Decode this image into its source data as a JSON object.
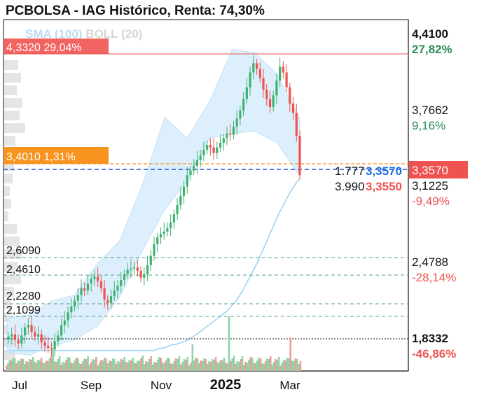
{
  "title": "PCBOLSA - IAG Histórico, Renta: 74,30%",
  "indicators": {
    "sma": "SMA (100)",
    "boll": "BOLL (20)"
  },
  "colors": {
    "up": "#3cb371",
    "down": "#ef5350",
    "sma": "#9dd4f5",
    "band": "#cfe8fb",
    "orange": "#f7931e",
    "blue": "#1f50e0"
  },
  "chart_data": {
    "type": "candlestick",
    "x_ticks": [
      "Jul",
      "Sep",
      "Nov",
      "2025",
      "Mar"
    ],
    "y_range": [
      1.68,
      4.55
    ],
    "price_series": {
      "name": "IAG",
      "close": [
        1.96,
        1.98,
        1.93,
        1.9,
        1.97,
        2.04,
        2.06,
        2.0,
        1.96,
        1.98,
        1.91,
        1.88,
        1.86,
        1.85,
        1.92,
        1.97,
        2.06,
        2.1,
        2.17,
        2.22,
        2.27,
        2.32,
        2.38,
        2.36,
        2.42,
        2.46,
        2.48,
        2.44,
        2.38,
        2.28,
        2.25,
        2.31,
        2.36,
        2.4,
        2.45,
        2.5,
        2.54,
        2.55,
        2.56,
        2.53,
        2.47,
        2.5,
        2.58,
        2.66,
        2.76,
        2.82,
        2.85,
        2.87,
        2.9,
        2.95,
        3.02,
        3.1,
        3.18,
        3.26,
        3.36,
        3.4,
        3.44,
        3.49,
        3.53,
        3.58,
        3.62,
        3.6,
        3.55,
        3.6,
        3.64,
        3.68,
        3.72,
        3.71,
        3.78,
        3.85,
        3.92,
        4.02,
        4.12,
        4.25,
        4.33,
        4.28,
        4.2,
        4.1,
        4.02,
        3.95,
        4.05,
        4.18,
        4.3,
        4.25,
        4.12,
        3.98,
        3.9,
        3.7,
        3.36
      ]
    },
    "sma_100": [
      1.84,
      1.85,
      1.86,
      1.86,
      1.87,
      1.88,
      1.89,
      1.89,
      1.9,
      1.91,
      1.92,
      1.93,
      1.95,
      1.96,
      1.98,
      2.0,
      2.02,
      2.04,
      2.06,
      2.08,
      2.1,
      2.12,
      2.14,
      2.16,
      2.18,
      2.21,
      2.24,
      2.27,
      2.31,
      2.35,
      2.4,
      2.45,
      2.5,
      2.55,
      2.6,
      2.66,
      2.72,
      2.78,
      2.84,
      2.9,
      2.96,
      3.02,
      3.07,
      3.12,
      3.17,
      3.22,
      3.26,
      3.3,
      3.33
    ],
    "bollinger_20": {
      "upper_edge": [
        2.12,
        2.15,
        2.27,
        2.32,
        2.59,
        2.79,
        3.27,
        3.86,
        3.68,
        4.0,
        4.45,
        4.42,
        4.23,
        3.85
      ],
      "lower_edge": [
        1.82,
        1.8,
        1.88,
        1.93,
        2.05,
        2.3,
        2.7,
        3.06,
        3.31,
        3.68,
        3.72,
        3.74,
        3.64,
        3.35
      ]
    },
    "volume": {
      "label": "Volume",
      "scale_relative": true
    },
    "levels": [
      {
        "price": "4,4100",
        "pct": "27,82%",
        "pct_color": "#2e8b57"
      },
      {
        "price": "3,7662",
        "pct": "9,16%",
        "pct_color": "#2e8b57"
      },
      {
        "price": "3,1225",
        "pct": "-9,49%",
        "pct_color": "#ef5350"
      },
      {
        "price": "2,4788",
        "pct": "-28,14%",
        "pct_color": "#ef5350"
      },
      {
        "price": "1,8332",
        "pct": "-46,86%",
        "pct_color": "#ef5350"
      }
    ],
    "left_labels": [
      {
        "text": "4,3320  29,04%",
        "value": 4.332,
        "style": "red"
      },
      {
        "text": "3,4010  1,31%",
        "value": 3.401,
        "style": "orange"
      },
      {
        "text": "2,6090",
        "value": 2.609,
        "style": "plain"
      },
      {
        "text": "2,4610",
        "value": 2.461,
        "style": "plain"
      },
      {
        "text": "2,2280",
        "value": 2.228,
        "style": "plain"
      },
      {
        "text": "2,1099",
        "value": 2.1099,
        "style": "plain"
      }
    ],
    "current_price": "3,3570",
    "order_labels": {
      "top_left": "1.777",
      "top_right": "3,3570",
      "bottom_left": "3.990",
      "bottom_right": "3,3550"
    }
  }
}
